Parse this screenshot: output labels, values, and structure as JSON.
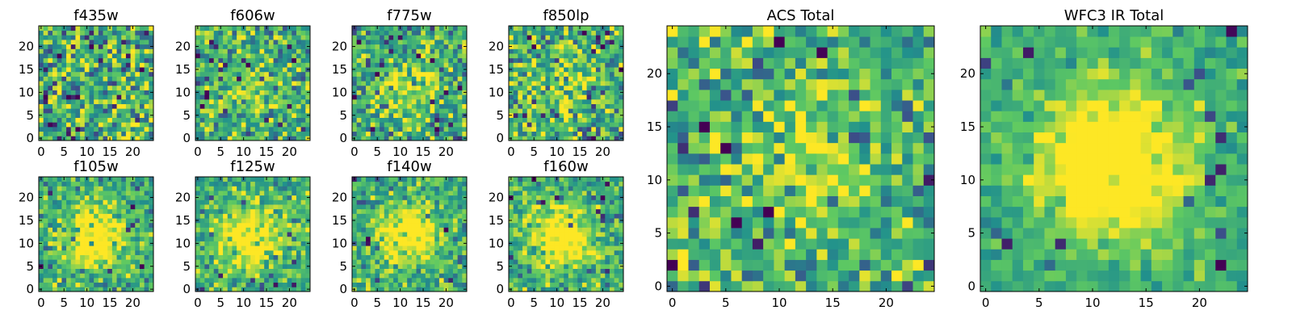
{
  "colormap": [
    "#440154",
    "#3b528b",
    "#21918c",
    "#5ec962",
    "#fde725"
  ],
  "chart_data": [
    {
      "name": "f435w",
      "type": "heatmap",
      "title": "f435w",
      "x_ticks": [
        0,
        5,
        10,
        15,
        20
      ],
      "y_ticks": [
        0,
        5,
        10,
        15,
        20
      ],
      "xlim": [
        -0.5,
        24.5
      ],
      "ylim": [
        -0.5,
        24.5
      ],
      "grid_size": 25,
      "source_center": null,
      "signal": 0.0,
      "noise": 0.55
    },
    {
      "name": "f606w",
      "type": "heatmap",
      "title": "f606w",
      "x_ticks": [
        0,
        5,
        10,
        15,
        20
      ],
      "y_ticks": [
        0,
        5,
        10,
        15,
        20
      ],
      "xlim": [
        -0.5,
        24.5
      ],
      "ylim": [
        -0.5,
        24.5
      ],
      "grid_size": 25,
      "source_center": [
        12,
        11
      ],
      "signal": 0.2,
      "noise": 0.45
    },
    {
      "name": "f775w",
      "type": "heatmap",
      "title": "f775w",
      "x_ticks": [
        0,
        5,
        10,
        15,
        20
      ],
      "y_ticks": [
        0,
        5,
        10,
        15,
        20
      ],
      "xlim": [
        -0.5,
        24.5
      ],
      "ylim": [
        -0.5,
        24.5
      ],
      "grid_size": 25,
      "source_center": [
        12,
        11
      ],
      "signal": 0.25,
      "noise": 0.45
    },
    {
      "name": "f850lp",
      "type": "heatmap",
      "title": "f850lp",
      "x_ticks": [
        0,
        5,
        10,
        15,
        20
      ],
      "y_ticks": [
        0,
        5,
        10,
        15,
        20
      ],
      "xlim": [
        -0.5,
        24.5
      ],
      "ylim": [
        -0.5,
        24.5
      ],
      "grid_size": 25,
      "source_center": [
        12,
        11
      ],
      "signal": 0.25,
      "noise": 0.5
    },
    {
      "name": "f105w",
      "type": "heatmap",
      "title": "f105w",
      "x_ticks": [
        0,
        5,
        10,
        15,
        20
      ],
      "y_ticks": [
        0,
        5,
        10,
        15,
        20
      ],
      "xlim": [
        -0.5,
        24.5
      ],
      "ylim": [
        -0.5,
        24.5
      ],
      "grid_size": 25,
      "source_center": [
        12,
        11
      ],
      "signal": 0.55,
      "noise": 0.35
    },
    {
      "name": "f125w",
      "type": "heatmap",
      "title": "f125w",
      "x_ticks": [
        0,
        5,
        10,
        15,
        20
      ],
      "y_ticks": [
        0,
        5,
        10,
        15,
        20
      ],
      "xlim": [
        -0.5,
        24.5
      ],
      "ylim": [
        -0.5,
        24.5
      ],
      "grid_size": 25,
      "source_center": [
        12,
        11
      ],
      "signal": 0.55,
      "noise": 0.35
    },
    {
      "name": "f140w",
      "type": "heatmap",
      "title": "f140w",
      "x_ticks": [
        0,
        5,
        10,
        15,
        20
      ],
      "y_ticks": [
        0,
        5,
        10,
        15,
        20
      ],
      "xlim": [
        -0.5,
        24.5
      ],
      "ylim": [
        -0.5,
        24.5
      ],
      "grid_size": 25,
      "source_center": [
        12,
        12
      ],
      "signal": 0.55,
      "noise": 0.35
    },
    {
      "name": "f160w",
      "type": "heatmap",
      "title": "f160w",
      "x_ticks": [
        0,
        5,
        10,
        15,
        20
      ],
      "y_ticks": [
        0,
        5,
        10,
        15,
        20
      ],
      "xlim": [
        -0.5,
        24.5
      ],
      "ylim": [
        -0.5,
        24.5
      ],
      "grid_size": 25,
      "source_center": [
        11,
        11
      ],
      "signal": 0.6,
      "noise": 0.35
    },
    {
      "name": "acs-total",
      "type": "heatmap",
      "title": "ACS Total",
      "x_ticks": [
        0,
        5,
        10,
        15,
        20
      ],
      "y_ticks": [
        0,
        5,
        10,
        15,
        20
      ],
      "xlim": [
        -0.5,
        24.5
      ],
      "ylim": [
        -0.5,
        24.5
      ],
      "grid_size": 25,
      "source_center": [
        12,
        12
      ],
      "signal": 0.3,
      "noise": 0.4
    },
    {
      "name": "wfc3-ir-total",
      "type": "heatmap",
      "title": "WFC3 IR Total",
      "x_ticks": [
        0,
        5,
        10,
        15,
        20
      ],
      "y_ticks": [
        0,
        5,
        10,
        15,
        20
      ],
      "xlim": [
        -0.5,
        24.5
      ],
      "ylim": [
        -0.5,
        24.5
      ],
      "grid_size": 25,
      "source_center": [
        12,
        11.5
      ],
      "signal": 0.75,
      "noise": 0.22
    }
  ]
}
